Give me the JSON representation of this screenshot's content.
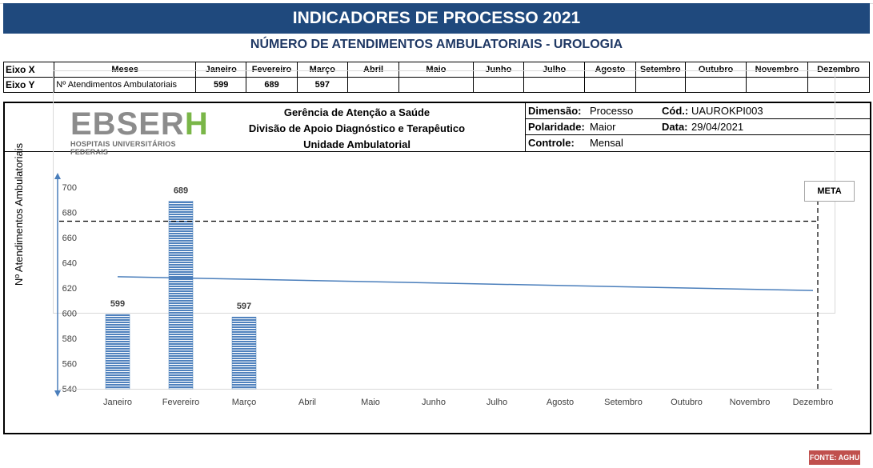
{
  "banner": {
    "title": "INDICADORES DE PROCESSO 2021"
  },
  "subtitle": "NÚMERO DE ATENDIMENTOS AMBULATORIAIS -  UROLOGIA",
  "table": {
    "row_x": {
      "head": "Eixo X",
      "label": "Meses",
      "months": [
        "Janeiro",
        "Fevereiro",
        "Março",
        "Abril",
        "Maio",
        "Junho",
        "Julho",
        "Agosto",
        "Setembro",
        "Outubro",
        "Novembro",
        "Dezembro"
      ]
    },
    "row_y": {
      "head": "Eixo Y",
      "label": "Nº Atendimentos Ambulatoriais",
      "values": [
        "599",
        "689",
        "597",
        "",
        "",
        "",
        "",
        "",
        "",
        "",
        "",
        ""
      ]
    }
  },
  "logo": {
    "main_gray": "EBSER",
    "main_green": "H",
    "sub": "HOSPITAIS UNIVERSITÁRIOS FEDERAIS"
  },
  "header_lines": [
    "Gerência de Atenção a Saúde",
    "Divisão de Apoio Diagnóstico e Terapêutico",
    "Unidade Ambulatorial"
  ],
  "info": {
    "dimensao_label": "Dimensão:",
    "dimensao": "Processo",
    "cod_label": "Cód.:",
    "cod": "UAUROKPI003",
    "polaridade_label": "Polaridade:",
    "polaridade": "Maior",
    "data_label": "Data:",
    "data": "29/04/2021",
    "controle_label": "Controle:",
    "controle": "Mensal"
  },
  "meta_label": "META",
  "fonte": "FONTE: AGHU",
  "colors": {
    "banner": "#1f497d",
    "subtitle": "#1f3864",
    "bar": "#4f81bd",
    "trend": "#4a7ebb",
    "logo_gray": "#8c8c8c",
    "logo_green": "#7ab648",
    "fonte_bg": "#c0504d"
  },
  "chart_data": {
    "type": "bar",
    "ylabel": "Nº Atendimentos Ambulatoriais",
    "ylim": [
      540,
      700
    ],
    "yticks": [
      540,
      560,
      580,
      600,
      620,
      640,
      660,
      680,
      700
    ],
    "categories": [
      "Janeiro",
      "Fevereiro",
      "Março",
      "Abril",
      "Maio",
      "Junho",
      "Julho",
      "Agosto",
      "Setembro",
      "Outubro",
      "Novembro",
      "Dezembro"
    ],
    "series": [
      {
        "values": [
          599,
          689,
          597,
          null,
          null,
          null,
          null,
          null,
          null,
          null,
          null,
          null
        ]
      }
    ],
    "data_labels": [
      "599",
      "689",
      "597"
    ],
    "trend_line": {
      "start": 629,
      "end": 618
    },
    "meta_line": 673,
    "grid": false
  }
}
